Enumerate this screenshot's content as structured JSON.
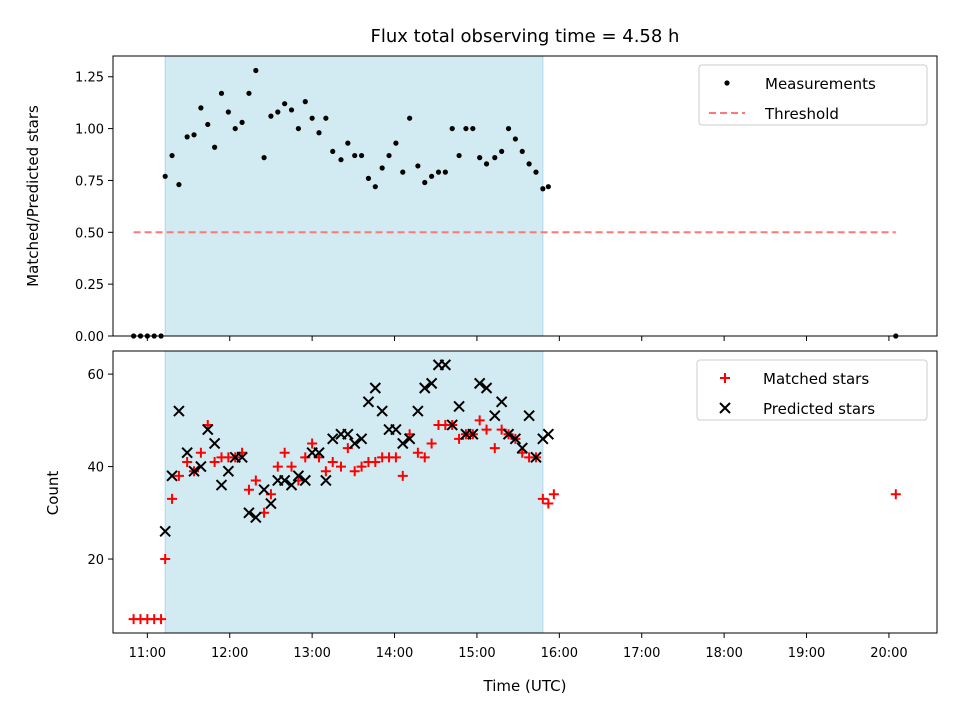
{
  "chart_data": {
    "type": "scatter",
    "title": "Flux total observing time = 4.58 h",
    "xlabel": "Time (UTC)",
    "x_ticks": [
      "11:00",
      "12:00",
      "13:00",
      "14:00",
      "15:00",
      "16:00",
      "17:00",
      "18:00",
      "19:00",
      "20:00"
    ],
    "x_range": [
      "10:35",
      "20:35"
    ],
    "shaded_interval": {
      "start": "11:13",
      "end": "15:48",
      "color": "#add8e6"
    },
    "panels": [
      {
        "name": "ratio",
        "ylabel": "Matched/Predicted stars",
        "ylim": [
          0,
          1.35
        ],
        "y_ticks": [
          "0.00",
          "0.25",
          "0.50",
          "0.75",
          "1.00",
          "1.25"
        ],
        "legend": {
          "placement": "top-right",
          "entries": [
            "Measurements",
            "Threshold"
          ]
        },
        "series": [
          {
            "name": "Measurements",
            "marker": "dot",
            "color": "#000000",
            "points": [
              [
                "10:50",
                0
              ],
              [
                "10:55",
                0
              ],
              [
                "11:00",
                0
              ],
              [
                "11:05",
                0
              ],
              [
                "11:10",
                0
              ],
              [
                "11:13",
                0.77
              ],
              [
                "11:18",
                0.87
              ],
              [
                "11:23",
                0.73
              ],
              [
                "11:29",
                0.96
              ],
              [
                "11:34",
                0.97
              ],
              [
                "11:39",
                1.1
              ],
              [
                "11:44",
                1.02
              ],
              [
                "11:49",
                0.91
              ],
              [
                "11:54",
                1.17
              ],
              [
                "11:59",
                1.08
              ],
              [
                "12:04",
                1.0
              ],
              [
                "12:09",
                1.03
              ],
              [
                "12:14",
                1.17
              ],
              [
                "12:19",
                1.28
              ],
              [
                "12:25",
                0.86
              ],
              [
                "12:30",
                1.06
              ],
              [
                "12:35",
                1.08
              ],
              [
                "12:40",
                1.12
              ],
              [
                "12:45",
                1.09
              ],
              [
                "12:50",
                1.0
              ],
              [
                "12:55",
                1.13
              ],
              [
                "13:00",
                1.05
              ],
              [
                "13:05",
                0.98
              ],
              [
                "13:10",
                1.05
              ],
              [
                "13:15",
                0.89
              ],
              [
                "13:21",
                0.85
              ],
              [
                "13:26",
                0.93
              ],
              [
                "13:31",
                0.87
              ],
              [
                "13:36",
                0.87
              ],
              [
                "13:41",
                0.76
              ],
              [
                "13:46",
                0.72
              ],
              [
                "13:51",
                0.81
              ],
              [
                "13:56",
                0.87
              ],
              [
                "14:01",
                0.93
              ],
              [
                "14:06",
                0.79
              ],
              [
                "14:11",
                1.05
              ],
              [
                "14:17",
                0.82
              ],
              [
                "14:22",
                0.74
              ],
              [
                "14:27",
                0.77
              ],
              [
                "14:32",
                0.79
              ],
              [
                "14:37",
                0.79
              ],
              [
                "14:42",
                1.0
              ],
              [
                "14:47",
                0.87
              ],
              [
                "14:52",
                1.0
              ],
              [
                "14:57",
                1.0
              ],
              [
                "15:02",
                0.86
              ],
              [
                "15:07",
                0.83
              ],
              [
                "15:13",
                0.86
              ],
              [
                "15:18",
                0.89
              ],
              [
                "15:23",
                1.0
              ],
              [
                "15:28",
                0.95
              ],
              [
                "15:33",
                0.89
              ],
              [
                "15:38",
                0.83
              ],
              [
                "15:43",
                0.79
              ],
              [
                "15:48",
                0.71
              ],
              [
                "15:52",
                0.72
              ],
              [
                "20:05",
                0
              ]
            ]
          },
          {
            "name": "Threshold",
            "line": "dashed",
            "color": "#ff7777",
            "points": [
              [
                "10:50",
                0.5
              ],
              [
                "20:05",
                0.5
              ]
            ]
          }
        ]
      },
      {
        "name": "counts",
        "ylabel": "Count",
        "ylim": [
          4,
          65
        ],
        "y_ticks": [
          "20",
          "40",
          "60"
        ],
        "legend": {
          "placement": "top-right",
          "entries": [
            "Matched stars",
            "Predicted stars"
          ]
        },
        "series": [
          {
            "name": "Matched stars",
            "marker": "plus",
            "color": "#ff0000",
            "points": [
              [
                "10:50",
                7
              ],
              [
                "10:55",
                7
              ],
              [
                "11:00",
                7
              ],
              [
                "11:05",
                7
              ],
              [
                "11:10",
                7
              ],
              [
                "11:13",
                20
              ],
              [
                "11:18",
                33
              ],
              [
                "11:23",
                38
              ],
              [
                "11:29",
                41
              ],
              [
                "11:34",
                39
              ],
              [
                "11:39",
                43
              ],
              [
                "11:44",
                49
              ],
              [
                "11:49",
                41
              ],
              [
                "11:54",
                42
              ],
              [
                "11:59",
                42
              ],
              [
                "12:04",
                42
              ],
              [
                "12:09",
                43
              ],
              [
                "12:14",
                35
              ],
              [
                "12:19",
                37
              ],
              [
                "12:25",
                30
              ],
              [
                "12:30",
                34
              ],
              [
                "12:35",
                40
              ],
              [
                "12:40",
                43
              ],
              [
                "12:45",
                40
              ],
              [
                "12:50",
                37
              ],
              [
                "12:55",
                42
              ],
              [
                "13:00",
                45
              ],
              [
                "13:05",
                42
              ],
              [
                "13:10",
                39
              ],
              [
                "13:15",
                41
              ],
              [
                "13:21",
                40
              ],
              [
                "13:26",
                44
              ],
              [
                "13:31",
                39
              ],
              [
                "13:36",
                40
              ],
              [
                "13:41",
                41
              ],
              [
                "13:46",
                41
              ],
              [
                "13:51",
                42
              ],
              [
                "13:56",
                42
              ],
              [
                "14:01",
                42
              ],
              [
                "14:06",
                38
              ],
              [
                "14:11",
                47
              ],
              [
                "14:17",
                43
              ],
              [
                "14:22",
                42
              ],
              [
                "14:27",
                45
              ],
              [
                "14:32",
                49
              ],
              [
                "14:37",
                49
              ],
              [
                "14:42",
                49
              ],
              [
                "14:47",
                46
              ],
              [
                "14:52",
                47
              ],
              [
                "14:57",
                47
              ],
              [
                "15:02",
                50
              ],
              [
                "15:07",
                48
              ],
              [
                "15:13",
                44
              ],
              [
                "15:18",
                48
              ],
              [
                "15:23",
                47
              ],
              [
                "15:28",
                46
              ],
              [
                "15:33",
                43
              ],
              [
                "15:38",
                42
              ],
              [
                "15:43",
                42
              ],
              [
                "15:48",
                33
              ],
              [
                "15:52",
                32
              ],
              [
                "15:56",
                34
              ],
              [
                "20:05",
                34
              ]
            ]
          },
          {
            "name": "Predicted stars",
            "marker": "x",
            "color": "#000000",
            "points": [
              [
                "11:13",
                26
              ],
              [
                "11:18",
                38
              ],
              [
                "11:23",
                52
              ],
              [
                "11:29",
                43
              ],
              [
                "11:34",
                39
              ],
              [
                "11:39",
                40
              ],
              [
                "11:44",
                48
              ],
              [
                "11:49",
                45
              ],
              [
                "11:54",
                36
              ],
              [
                "11:59",
                39
              ],
              [
                "12:04",
                42
              ],
              [
                "12:09",
                42
              ],
              [
                "12:14",
                30
              ],
              [
                "12:19",
                29
              ],
              [
                "12:25",
                35
              ],
              [
                "12:30",
                32
              ],
              [
                "12:35",
                37
              ],
              [
                "12:40",
                37
              ],
              [
                "12:45",
                36
              ],
              [
                "12:50",
                38
              ],
              [
                "12:55",
                37
              ],
              [
                "13:00",
                43
              ],
              [
                "13:05",
                43
              ],
              [
                "13:10",
                37
              ],
              [
                "13:15",
                46
              ],
              [
                "13:21",
                47
              ],
              [
                "13:26",
                47
              ],
              [
                "13:31",
                45
              ],
              [
                "13:36",
                46
              ],
              [
                "13:41",
                54
              ],
              [
                "13:46",
                57
              ],
              [
                "13:51",
                52
              ],
              [
                "13:56",
                48
              ],
              [
                "14:01",
                48
              ],
              [
                "14:06",
                45
              ],
              [
                "14:11",
                46
              ],
              [
                "14:17",
                52
              ],
              [
                "14:22",
                57
              ],
              [
                "14:27",
                58
              ],
              [
                "14:32",
                62
              ],
              [
                "14:37",
                62
              ],
              [
                "14:42",
                49
              ],
              [
                "14:47",
                53
              ],
              [
                "14:52",
                47
              ],
              [
                "14:57",
                47
              ],
              [
                "15:02",
                58
              ],
              [
                "15:07",
                57
              ],
              [
                "15:13",
                51
              ],
              [
                "15:18",
                54
              ],
              [
                "15:23",
                47
              ],
              [
                "15:28",
                46
              ],
              [
                "15:33",
                44
              ],
              [
                "15:38",
                51
              ],
              [
                "15:43",
                42
              ],
              [
                "15:48",
                46
              ],
              [
                "15:52",
                47
              ]
            ]
          }
        ]
      }
    ]
  }
}
